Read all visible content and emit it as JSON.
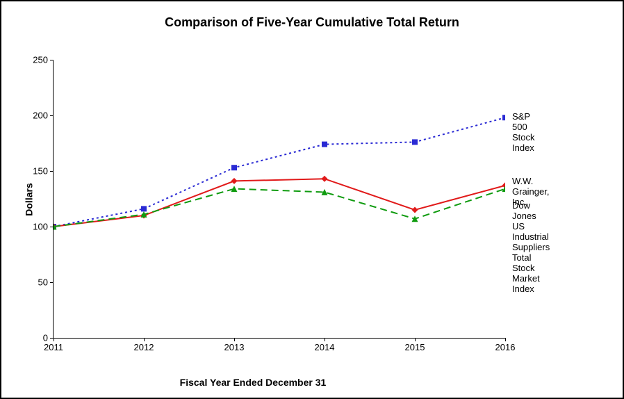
{
  "chart": {
    "title": "Comparison of Five-Year Cumulative Total Return",
    "xlabel": "Fiscal Year Ended December 31",
    "ylabel": "Dollars",
    "type": "line",
    "background_color": "#ffffff",
    "border_color": "#000000",
    "title_fontsize": 18,
    "label_fontsize": 14,
    "tick_fontsize": 13,
    "xlim": [
      2011,
      2016
    ],
    "ylim": [
      0,
      250
    ],
    "ytick_step": 50,
    "xticks": [
      2011,
      2012,
      2013,
      2014,
      2015,
      2016
    ],
    "series": [
      {
        "name": "S&P 500 Stock Index",
        "color": "#2a2ad4",
        "dash": "3,4",
        "line_width": 2,
        "marker": "square",
        "marker_size": 8,
        "x": [
          2011,
          2012,
          2013,
          2014,
          2015,
          2016
        ],
        "y": [
          100,
          116,
          153,
          174,
          176,
          198
        ],
        "label_y": 198
      },
      {
        "name": "W.W. Grainger, Inc.",
        "color": "#e11a1a",
        "dash": "",
        "line_width": 2,
        "marker": "diamond",
        "marker_size": 9,
        "x": [
          2011,
          2012,
          2013,
          2014,
          2015,
          2016
        ],
        "y": [
          100,
          110,
          141,
          143,
          115,
          137
        ],
        "label_y": 140
      },
      {
        "name": "Dow Jones US Industrial Suppliers Total Stock Market Index",
        "color": "#0f9b0f",
        "dash": "10,6",
        "line_width": 2,
        "marker": "triangle",
        "marker_size": 9,
        "x": [
          2011,
          2012,
          2013,
          2014,
          2015,
          2016
        ],
        "y": [
          100,
          111,
          134,
          131,
          107,
          134
        ],
        "label_y": 118
      }
    ]
  }
}
